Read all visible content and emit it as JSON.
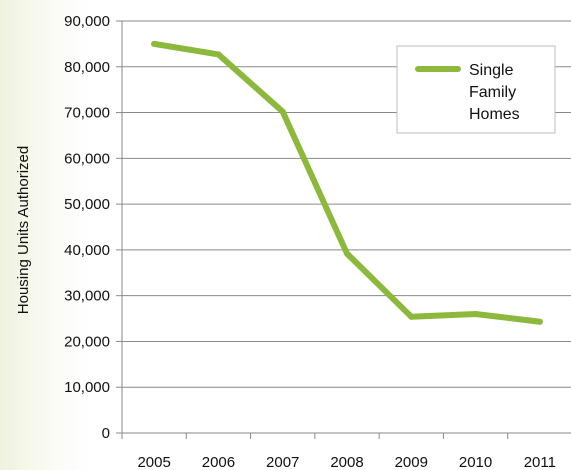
{
  "chart_data": {
    "type": "line",
    "title": "",
    "xlabel": "",
    "ylabel": "Housing Units Authorized",
    "categories": [
      "2005",
      "2006",
      "2007",
      "2008",
      "2009",
      "2010",
      "2011"
    ],
    "series": [
      {
        "name": "Single Family Homes",
        "values": [
          85000,
          82700,
          70200,
          39200,
          25400,
          26000,
          24300
        ],
        "color": "#8cb83c"
      }
    ],
    "ylim": [
      0,
      90000
    ],
    "yticks": [
      0,
      10000,
      20000,
      30000,
      40000,
      50000,
      60000,
      70000,
      80000,
      90000
    ],
    "ytick_labels": [
      "0",
      "10,000",
      "20,000",
      "30,000",
      "40,000",
      "50,000",
      "60,000",
      "70,000",
      "80,000",
      "90,000"
    ],
    "grid": "horizontal",
    "legend_placement": "top-right",
    "legend_lines": [
      "Single",
      "Family",
      "Homes"
    ]
  }
}
